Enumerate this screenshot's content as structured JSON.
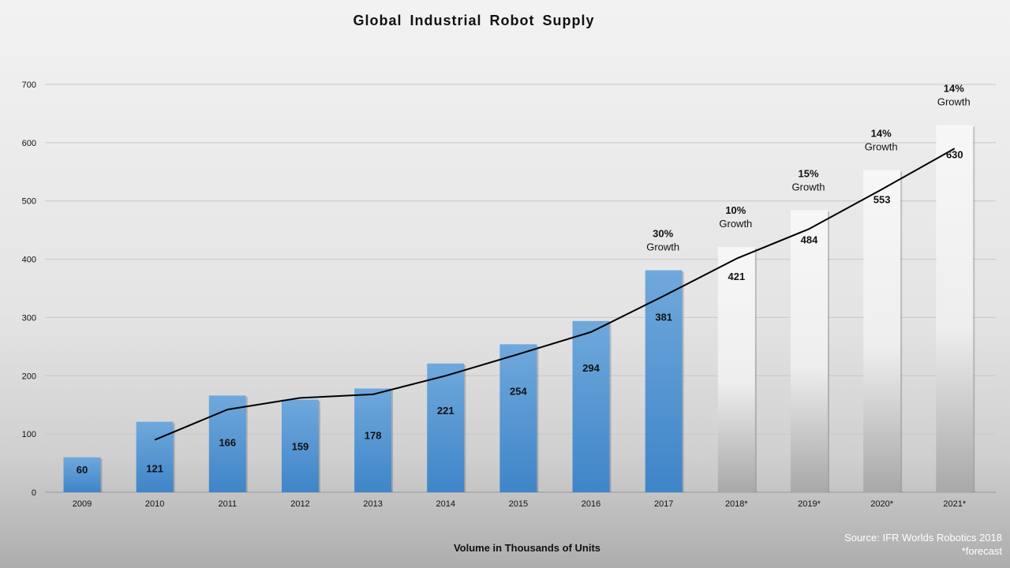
{
  "chart_data": {
    "type": "bar",
    "title": "Global Industrial Robot Supply",
    "xlabel": "Volume in Thousands of Units",
    "ylabel": "",
    "ylim": [
      0,
      700
    ],
    "yticks": [
      0,
      100,
      200,
      300,
      400,
      500,
      600,
      700
    ],
    "grid": true,
    "categories": [
      "2009",
      "2010",
      "2011",
      "2012",
      "2013",
      "2014",
      "2015",
      "2016",
      "2017",
      "2018*",
      "2019*",
      "2020*",
      "2021*"
    ],
    "values": [
      60,
      121,
      166,
      159,
      178,
      221,
      254,
      294,
      381,
      421,
      484,
      553,
      630
    ],
    "forecast": [
      false,
      false,
      false,
      false,
      false,
      false,
      false,
      false,
      false,
      true,
      true,
      true,
      true
    ],
    "trendline": {
      "categories": [
        "2010",
        "2011",
        "2012",
        "2013",
        "2014",
        "2015",
        "2016",
        "2017",
        "2018*",
        "2019*",
        "2020*",
        "2021*"
      ],
      "values": [
        90,
        142,
        162,
        168,
        200,
        237,
        275,
        337,
        401,
        452,
        520,
        590
      ]
    },
    "annotations": [
      {
        "category": "2017",
        "pct": "30%",
        "text": "Growth"
      },
      {
        "category": "2018*",
        "pct": "10%",
        "text": "Growth"
      },
      {
        "category": "2019*",
        "pct": "15%",
        "text": "Growth"
      },
      {
        "category": "2020*",
        "pct": "14%",
        "text": "Growth"
      },
      {
        "category": "2021*",
        "pct": "14%",
        "text": "Growth"
      }
    ],
    "colors": {
      "actual": "#5b9bd5",
      "forecast": "#f2f2f2",
      "trendline": "#000000",
      "grid": "#c8c8c8"
    }
  },
  "source": {
    "line1": "Source: IFR Worlds Robotics 2018",
    "line2": "*forecast"
  }
}
